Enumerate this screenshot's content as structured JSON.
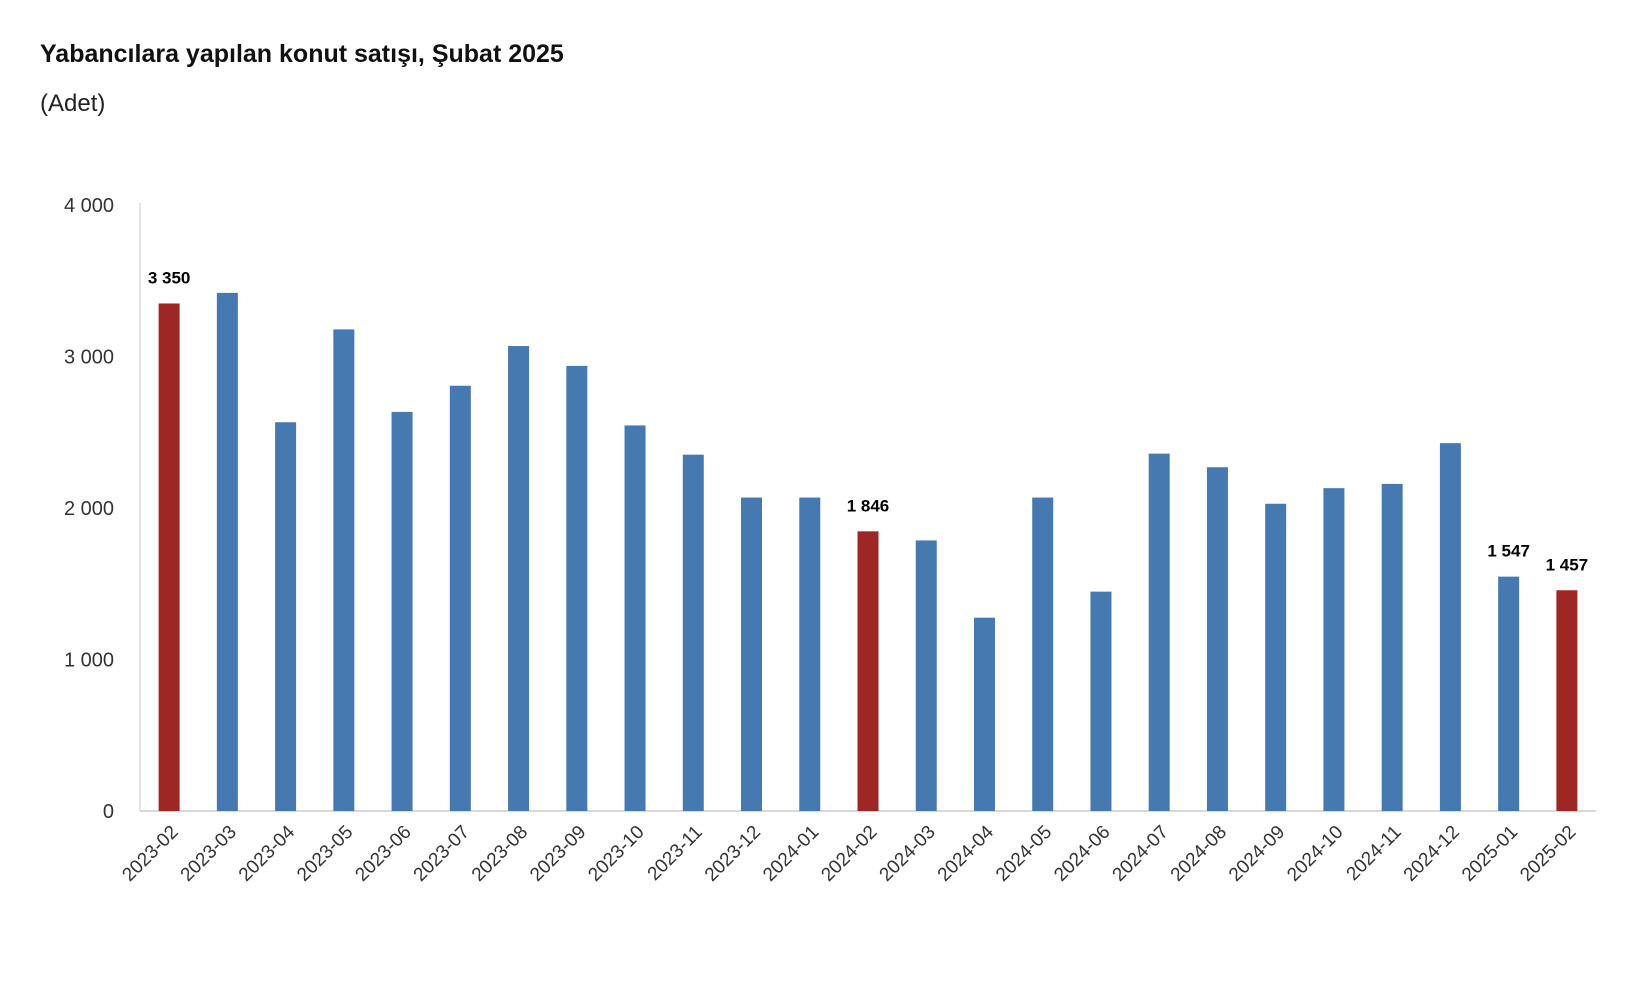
{
  "chart_data": {
    "type": "bar",
    "title": "Yabancılara yapılan konut satışı, Şubat 2025",
    "subtitle": "(Adet)",
    "xlabel": "",
    "ylabel": "",
    "ylim": [
      0,
      4000
    ],
    "yticks": [
      0,
      1000,
      2000,
      3000,
      4000
    ],
    "ytick_labels": [
      "0",
      "1 000",
      "2 000",
      "3 000",
      "4 000"
    ],
    "grid": false,
    "categories": [
      "2023-02",
      "2023-03",
      "2023-04",
      "2023-05",
      "2023-06",
      "2023-07",
      "2023-08",
      "2023-09",
      "2023-10",
      "2023-11",
      "2023-12",
      "2024-01",
      "2024-02",
      "2024-03",
      "2024-04",
      "2024-05",
      "2024-06",
      "2024-07",
      "2024-08",
      "2024-09",
      "2024-10",
      "2024-11",
      "2024-12",
      "2025-01",
      "2025-02"
    ],
    "values": [
      3350,
      3420,
      2566,
      3179,
      2634,
      2807,
      3069,
      2938,
      2545,
      2352,
      2069,
      2069,
      1846,
      1786,
      1276,
      2069,
      1448,
      2359,
      2269,
      2028,
      2131,
      2159,
      2428,
      1547,
      1457
    ],
    "highlighted": [
      "2023-02",
      "2024-02",
      "2025-02"
    ],
    "data_labels": {
      "2023-02": "3 350",
      "2024-02": "1 846",
      "2025-01": "1 547",
      "2025-02": "1 457"
    },
    "colors": {
      "default": "#4679B0",
      "highlight": "#9E2624",
      "axis": "#D9D9D9"
    }
  }
}
